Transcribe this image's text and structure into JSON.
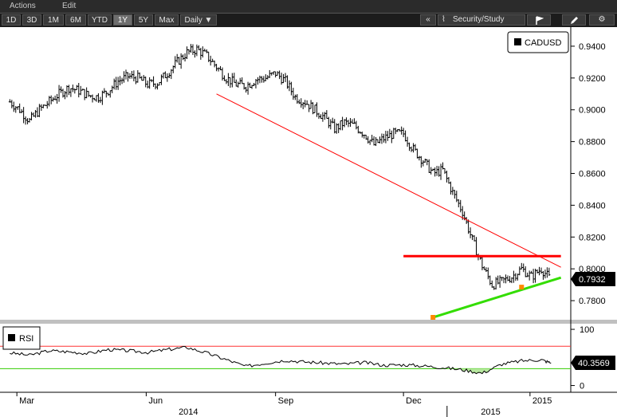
{
  "menu": {
    "actions": "Actions",
    "edit": "Edit"
  },
  "toolbar": {
    "ranges": [
      "1D",
      "3D",
      "1M",
      "6M",
      "YTD",
      "1Y",
      "5Y",
      "Max"
    ],
    "active_range": "1Y",
    "interval": "Daily ▼",
    "collapse": "«",
    "security_study": "Security/Study"
  },
  "colors": {
    "background": "#ffffff",
    "price": "#000000",
    "trend_red": "#ff0000",
    "trend_green": "#33dd00",
    "anchor": "#ff8800",
    "axis_text": "#000000",
    "rsi_upper": "#ff3333",
    "rsi_lower": "#33cc00"
  },
  "chart_data": [
    {
      "type": "line",
      "subtype": "ohlc-bars",
      "legend": "CADUSD",
      "last_value": "0.7932",
      "ylim": [
        0.768,
        0.952
      ],
      "yticks": [
        "0.9400",
        "0.9200",
        "0.9000",
        "0.8800",
        "0.8600",
        "0.8400",
        "0.8200",
        "0.8000",
        "0.7800"
      ],
      "x_labels": [
        "Mar",
        "Jun",
        "Sep",
        "Dec",
        "2015"
      ],
      "year_labels": [
        "2014",
        "2015"
      ],
      "x": [
        "2014-02-24",
        "2014-03-03",
        "2014-03-10",
        "2014-03-17",
        "2014-03-24",
        "2014-03-31",
        "2014-04-07",
        "2014-04-14",
        "2014-04-21",
        "2014-04-28",
        "2014-05-05",
        "2014-05-12",
        "2014-05-19",
        "2014-05-26",
        "2014-06-02",
        "2014-06-09",
        "2014-06-16",
        "2014-06-23",
        "2014-06-30",
        "2014-07-07",
        "2014-07-14",
        "2014-07-21",
        "2014-07-28",
        "2014-08-04",
        "2014-08-11",
        "2014-08-18",
        "2014-08-25",
        "2014-09-01",
        "2014-09-08",
        "2014-09-15",
        "2014-09-22",
        "2014-09-29",
        "2014-10-06",
        "2014-10-13",
        "2014-10-20",
        "2014-10-27",
        "2014-11-03",
        "2014-11-10",
        "2014-11-17",
        "2014-11-24",
        "2014-12-01",
        "2014-12-08",
        "2014-12-15",
        "2014-12-22",
        "2014-12-29",
        "2015-01-05",
        "2015-01-12",
        "2015-01-19",
        "2015-01-26",
        "2015-02-02",
        "2015-02-09",
        "2015-02-16",
        "2015-02-23",
        "2015-03-02",
        "2015-03-09",
        "2015-03-16"
      ],
      "series": [
        {
          "values": [
            0.905,
            0.9,
            0.893,
            0.9,
            0.905,
            0.91,
            0.914,
            0.912,
            0.909,
            0.908,
            0.912,
            0.918,
            0.921,
            0.92,
            0.916,
            0.917,
            0.923,
            0.93,
            0.936,
            0.938,
            0.934,
            0.927,
            0.92,
            0.916,
            0.915,
            0.919,
            0.92,
            0.923,
            0.918,
            0.908,
            0.905,
            0.9,
            0.895,
            0.888,
            0.892,
            0.89,
            0.885,
            0.878,
            0.882,
            0.885,
            0.885,
            0.875,
            0.868,
            0.86,
            0.862,
            0.848,
            0.836,
            0.818,
            0.802,
            0.79,
            0.792,
            0.795,
            0.8,
            0.795,
            0.8,
            0.793
          ]
        }
      ],
      "annotations": {
        "red_trendline": {
          "from": [
            "2014-07-21",
            0.91
          ],
          "to": [
            "2015-03-23",
            0.801
          ]
        },
        "red_resistance": {
          "from": [
            "2014-12-01",
            0.808
          ],
          "to": [
            "2015-03-23",
            0.808
          ]
        },
        "green_support": {
          "from": [
            "2014-12-22",
            0.7695
          ],
          "to": [
            "2015-03-23",
            0.7945
          ]
        },
        "orange_points": [
          [
            "2014-12-22",
            0.7695
          ],
          [
            "2015-02-23",
            0.7885
          ]
        ]
      }
    },
    {
      "type": "line",
      "legend": "RSI",
      "last_value": "40.3569",
      "ylim": [
        -12,
        110
      ],
      "yticks": [
        "100",
        "0"
      ],
      "upper_band": 70,
      "lower_band": 30,
      "x": [
        "2014-02-24",
        "2014-03-10",
        "2014-03-24",
        "2014-04-07",
        "2014-04-21",
        "2014-05-05",
        "2014-05-19",
        "2014-06-02",
        "2014-06-16",
        "2014-06-30",
        "2014-07-14",
        "2014-07-28",
        "2014-08-11",
        "2014-08-25",
        "2014-09-08",
        "2014-09-22",
        "2014-10-06",
        "2014-10-20",
        "2014-11-03",
        "2014-11-17",
        "2014-12-01",
        "2014-12-15",
        "2014-12-29",
        "2015-01-12",
        "2015-01-26",
        "2015-02-09",
        "2015-02-23",
        "2015-03-09",
        "2015-03-16"
      ],
      "series": [
        {
          "values": [
            58,
            54,
            62,
            60,
            57,
            64,
            62,
            59,
            64,
            68,
            58,
            46,
            34,
            40,
            45,
            42,
            40,
            38,
            41,
            36,
            37,
            35,
            32,
            28,
            22,
            38,
            44,
            46,
            40
          ]
        }
      ]
    }
  ]
}
